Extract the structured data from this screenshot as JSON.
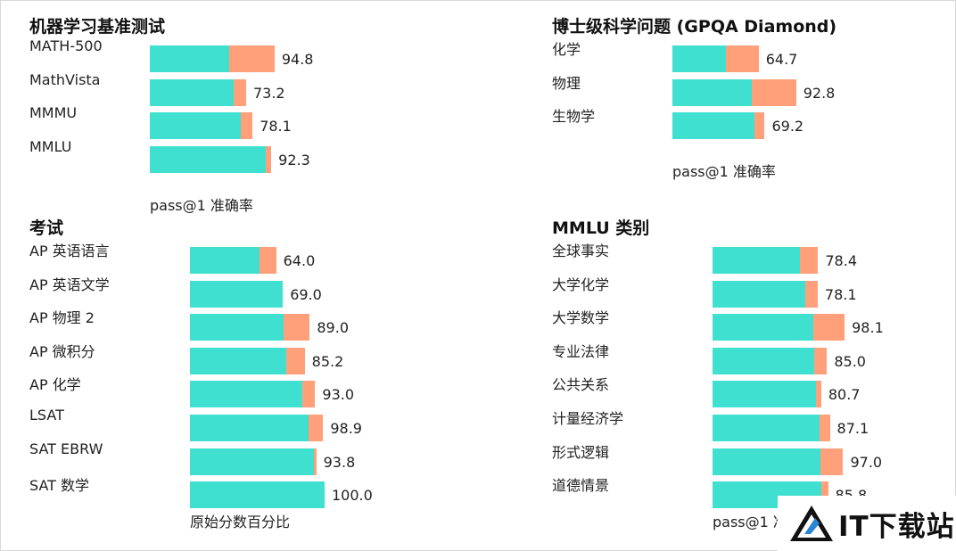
{
  "watermark": {
    "text": "IT下载站"
  },
  "chart_data": [
    {
      "type": "bar",
      "title": "机器学习基准测试",
      "xlabel": "pass@1 准确率",
      "categories": [
        "MATH-500",
        "MathVista",
        "MMMU",
        "MMLU"
      ],
      "series": [
        {
          "values": [
            60.3,
            63.8,
            69.1,
            88.0
          ]
        },
        {
          "values": [
            94.8,
            73.2,
            78.1,
            92.3
          ]
        }
      ]
    },
    {
      "type": "bar",
      "title": "博士级科学问题 (GPQA Diamond)",
      "xlabel": "pass@1 准确率",
      "categories": [
        "化学",
        "物理",
        "生物学"
      ],
      "series": [
        {
          "values": [
            40.2,
            59.5,
            61.6
          ]
        },
        {
          "values": [
            64.7,
            92.8,
            69.2
          ]
        }
      ]
    },
    {
      "type": "bar",
      "title": "考试",
      "xlabel": "原始分数百分比",
      "categories": [
        "AP 英语语言",
        "AP 英语文学",
        "AP 物理 2",
        "AP 微积分",
        "AP 化学",
        "LSAT",
        "SAT EBRW",
        "SAT 数学"
      ],
      "series": [
        {
          "values": [
            51.5,
            69.0,
            69.6,
            71.3,
            83.7,
            87.8,
            92.0,
            100.0
          ]
        },
        {
          "values": [
            64.0,
            69.0,
            89.0,
            85.2,
            93.0,
            98.9,
            93.8,
            100.0
          ]
        }
      ]
    },
    {
      "type": "bar",
      "title": "MMLU 类别",
      "xlabel": "pass@1 准确率",
      "categories": [
        "全球事实",
        "大学化学",
        "大学数学",
        "专业法律",
        "公共关系",
        "计量经济学",
        "形式逻辑",
        "道德情景"
      ],
      "series": [
        {
          "values": [
            65.0,
            69.0,
            75.1,
            75.5,
            76.7,
            79.6,
            80.2,
            80.6
          ]
        },
        {
          "values": [
            78.4,
            78.1,
            98.1,
            85.0,
            80.7,
            87.1,
            97.0,
            85.8
          ]
        }
      ]
    }
  ]
}
